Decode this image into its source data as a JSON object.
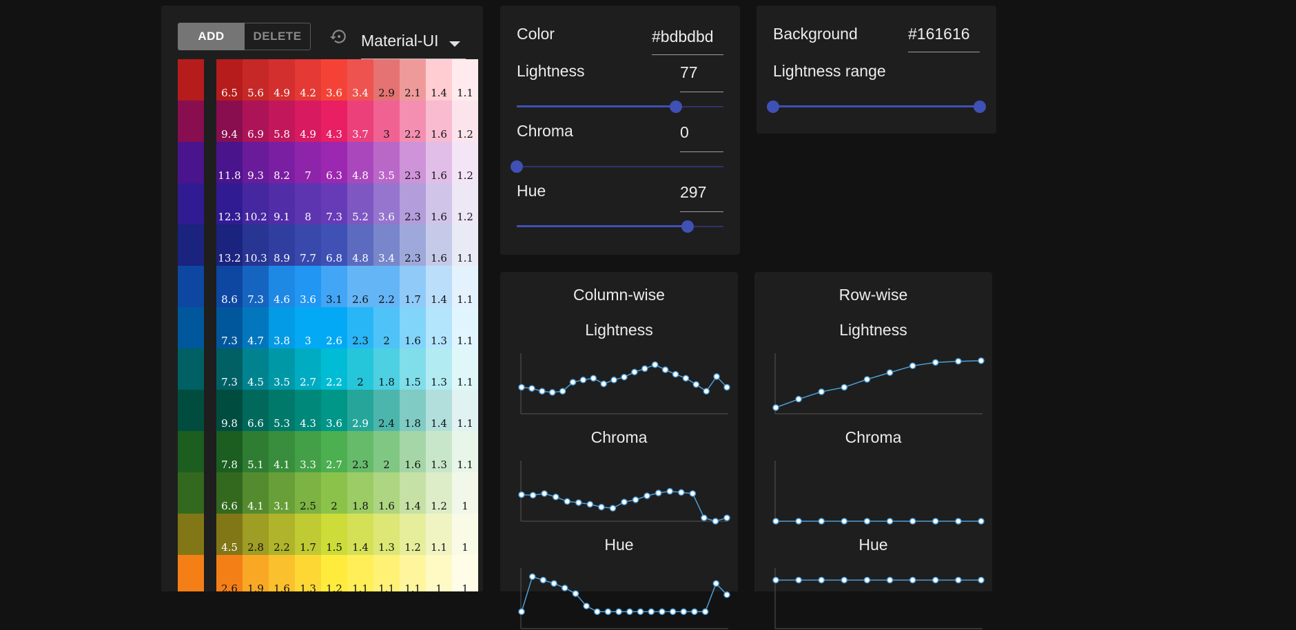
{
  "toolbar": {
    "add_label": "ADD",
    "delete_label": "DELETE",
    "reset_icon": "reset-icon",
    "preset": "Material-UI"
  },
  "palette": {
    "rows": [
      {
        "base": "#b71c1c",
        "swatches": [
          [
            "#b71c1c",
            "6.5"
          ],
          [
            "#c62828",
            "5.6"
          ],
          [
            "#d32f2f",
            "4.9"
          ],
          [
            "#e53935",
            "4.2"
          ],
          [
            "#f44336",
            "3.6"
          ],
          [
            "#ef5350",
            "3.4"
          ],
          [
            "#e57373",
            "2.9"
          ],
          [
            "#ef9a9a",
            "2.1"
          ],
          [
            "#ffcdd2",
            "1.4"
          ],
          [
            "#ffebee",
            "1.1"
          ]
        ]
      },
      {
        "base": "#880e4f",
        "swatches": [
          [
            "#880e4f",
            "9.4"
          ],
          [
            "#ad1457",
            "6.9"
          ],
          [
            "#c2185b",
            "5.8"
          ],
          [
            "#d81b60",
            "4.9"
          ],
          [
            "#e91e63",
            "4.3"
          ],
          [
            "#ec407a",
            "3.7"
          ],
          [
            "#f06292",
            "3"
          ],
          [
            "#f48fb1",
            "2.2"
          ],
          [
            "#f8bbd0",
            "1.6"
          ],
          [
            "#fce4ec",
            "1.2"
          ]
        ]
      },
      {
        "base": "#4a148c",
        "swatches": [
          [
            "#4a148c",
            "11.8"
          ],
          [
            "#6a1b9a",
            "9.3"
          ],
          [
            "#7b1fa2",
            "8.2"
          ],
          [
            "#8e24aa",
            "7"
          ],
          [
            "#9c27b0",
            "6.3"
          ],
          [
            "#ab47bc",
            "4.8"
          ],
          [
            "#ba68c8",
            "3.5"
          ],
          [
            "#ce93d8",
            "2.3"
          ],
          [
            "#e1bee7",
            "1.6"
          ],
          [
            "#f3e5f5",
            "1.2"
          ]
        ]
      },
      {
        "base": "#311b92",
        "swatches": [
          [
            "#311b92",
            "12.3"
          ],
          [
            "#4527a0",
            "10.2"
          ],
          [
            "#512da8",
            "9.1"
          ],
          [
            "#5e35b1",
            "8"
          ],
          [
            "#673ab7",
            "7.3"
          ],
          [
            "#7e57c2",
            "5.2"
          ],
          [
            "#9575cd",
            "3.6"
          ],
          [
            "#b39ddb",
            "2.3"
          ],
          [
            "#d1c4e9",
            "1.6"
          ],
          [
            "#ede7f6",
            "1.2"
          ]
        ]
      },
      {
        "base": "#1a237e",
        "swatches": [
          [
            "#1a237e",
            "13.2"
          ],
          [
            "#283593",
            "10.3"
          ],
          [
            "#303f9f",
            "8.9"
          ],
          [
            "#3949ab",
            "7.7"
          ],
          [
            "#3f51b5",
            "6.8"
          ],
          [
            "#5c6bc0",
            "4.8"
          ],
          [
            "#7986cb",
            "3.4"
          ],
          [
            "#9fa8da",
            "2.3"
          ],
          [
            "#c5cae9",
            "1.6"
          ],
          [
            "#e8eaf6",
            "1.1"
          ]
        ]
      },
      {
        "base": "#0d47a1",
        "swatches": [
          [
            "#0d47a1",
            "8.6"
          ],
          [
            "#1565c0",
            "7.3"
          ],
          [
            "#1e88e5",
            "4.6"
          ],
          [
            "#2196f3",
            "3.6"
          ],
          [
            "#42a5f5",
            "3.1"
          ],
          [
            "#64b5f6",
            "2.6"
          ],
          [
            "#64b5f6",
            "2.2"
          ],
          [
            "#90caf9",
            "1.7"
          ],
          [
            "#bbdefb",
            "1.4"
          ],
          [
            "#e3f2fd",
            "1.1"
          ]
        ]
      },
      {
        "base": "#01579b",
        "swatches": [
          [
            "#01579b",
            "7.3"
          ],
          [
            "#0277bd",
            "4.7"
          ],
          [
            "#039be5",
            "3.8"
          ],
          [
            "#03a9f4",
            "3"
          ],
          [
            "#03a9f4",
            "2.6"
          ],
          [
            "#29b6f6",
            "2.3"
          ],
          [
            "#4fc3f7",
            "2"
          ],
          [
            "#81d4fa",
            "1.6"
          ],
          [
            "#b3e5fc",
            "1.3"
          ],
          [
            "#e1f5fe",
            "1.1"
          ]
        ]
      },
      {
        "base": "#006064",
        "swatches": [
          [
            "#006064",
            "7.3"
          ],
          [
            "#00838f",
            "4.5"
          ],
          [
            "#0097a7",
            "3.5"
          ],
          [
            "#00acc1",
            "2.7"
          ],
          [
            "#00bcd4",
            "2.2"
          ],
          [
            "#26c6da",
            "2"
          ],
          [
            "#4dd0e1",
            "1.8"
          ],
          [
            "#80deea",
            "1.5"
          ],
          [
            "#b2ebf2",
            "1.3"
          ],
          [
            "#e0f7fa",
            "1.1"
          ]
        ]
      },
      {
        "base": "#004d40",
        "swatches": [
          [
            "#004d40",
            "9.8"
          ],
          [
            "#00695c",
            "6.6"
          ],
          [
            "#00796b",
            "5.3"
          ],
          [
            "#00897b",
            "4.3"
          ],
          [
            "#009688",
            "3.6"
          ],
          [
            "#26a69a",
            "2.9"
          ],
          [
            "#4db6ac",
            "2.4"
          ],
          [
            "#80cbc4",
            "1.8"
          ],
          [
            "#b2dfdb",
            "1.4"
          ],
          [
            "#e0f2f1",
            "1.1"
          ]
        ]
      },
      {
        "base": "#1b5e20",
        "swatches": [
          [
            "#1b5e20",
            "7.8"
          ],
          [
            "#2e7d32",
            "5.1"
          ],
          [
            "#388e3c",
            "4.1"
          ],
          [
            "#43a047",
            "3.3"
          ],
          [
            "#4caf50",
            "2.7"
          ],
          [
            "#66bb6a",
            "2.3"
          ],
          [
            "#81c784",
            "2"
          ],
          [
            "#a5d6a7",
            "1.6"
          ],
          [
            "#c8e6c9",
            "1.3"
          ],
          [
            "#e8f5e9",
            "1.1"
          ]
        ]
      },
      {
        "base": "#33691e",
        "swatches": [
          [
            "#33691e",
            "6.6"
          ],
          [
            "#558b2f",
            "4.1"
          ],
          [
            "#689f38",
            "3.1"
          ],
          [
            "#7cb342",
            "2.5"
          ],
          [
            "#8bc34a",
            "2"
          ],
          [
            "#9ccc65",
            "1.8"
          ],
          [
            "#aed581",
            "1.6"
          ],
          [
            "#c5e1a5",
            "1.4"
          ],
          [
            "#dcedc8",
            "1.2"
          ],
          [
            "#f1f8e9",
            "1"
          ]
        ]
      },
      {
        "base": "#827717",
        "swatches": [
          [
            "#827717",
            "4.5"
          ],
          [
            "#9e9d24",
            "2.8"
          ],
          [
            "#afb42b",
            "2.2"
          ],
          [
            "#c0ca33",
            "1.7"
          ],
          [
            "#cddc39",
            "1.5"
          ],
          [
            "#d4e157",
            "1.4"
          ],
          [
            "#dce775",
            "1.3"
          ],
          [
            "#e6ee9c",
            "1.2"
          ],
          [
            "#f0f4c3",
            "1.1"
          ],
          [
            "#f9fbe7",
            "1"
          ]
        ]
      },
      {
        "base": "#f57f17",
        "swatches": [
          [
            "#f57f17",
            "2.6"
          ],
          [
            "#f9a825",
            "1.9"
          ],
          [
            "#fbc02d",
            "1.6"
          ],
          [
            "#fdd835",
            "1.3"
          ],
          [
            "#ffeb3b",
            "1.2"
          ],
          [
            "#ffee58",
            "1.1"
          ],
          [
            "#fff176",
            "1.1"
          ],
          [
            "#fff59d",
            "1.1"
          ],
          [
            "#fff9c4",
            "1"
          ],
          [
            "#fffde7",
            "1"
          ]
        ]
      }
    ]
  },
  "color_panel": {
    "color_label": "Color",
    "color_value": "#bdbdbd",
    "lightness_label": "Lightness",
    "lightness_value": "77",
    "lightness_fraction": 0.77,
    "chroma_label": "Chroma",
    "chroma_value": "0",
    "chroma_fraction": 0.0,
    "hue_label": "Hue",
    "hue_value": "297",
    "hue_fraction": 0.825
  },
  "bg_panel": {
    "background_label": "Background",
    "background_value": "#161616",
    "range_label": "Lightness range",
    "range_low": 0.0,
    "range_high": 1.0
  },
  "accent": "#3f51b5",
  "line_color": "#4e9fd8",
  "chart_data": [
    {
      "type": "line",
      "title": "Column-wise",
      "subtitle": "Lightness",
      "y": [
        0.47,
        0.45,
        0.4,
        0.38,
        0.4,
        0.56,
        0.6,
        0.63,
        0.53,
        0.6,
        0.65,
        0.74,
        0.8,
        0.87,
        0.78,
        0.7,
        0.63,
        0.52,
        0.4,
        0.66,
        0.47
      ],
      "ylim": [
        0,
        1
      ]
    },
    {
      "type": "line",
      "title": "",
      "subtitle": "Chroma",
      "y": [
        0.47,
        0.46,
        0.49,
        0.43,
        0.35,
        0.33,
        0.3,
        0.25,
        0.23,
        0.34,
        0.38,
        0.45,
        0.5,
        0.53,
        0.51,
        0.49,
        0.06,
        0.0,
        0.06
      ],
      "ylim": [
        0,
        1
      ]
    },
    {
      "type": "line",
      "title": "",
      "subtitle": "Hue",
      "y": [
        0.3,
        0.92,
        0.86,
        0.8,
        0.72,
        0.62,
        0.4,
        0.3,
        0.3,
        0.3,
        0.3,
        0.3,
        0.3,
        0.3,
        0.3,
        0.3,
        0.3,
        0.3,
        0.8,
        0.6
      ],
      "ylim": [
        0,
        1
      ]
    },
    {
      "type": "line",
      "title": "Row-wise",
      "subtitle": "Lightness",
      "y": [
        0.11,
        0.26,
        0.39,
        0.47,
        0.61,
        0.73,
        0.85,
        0.91,
        0.93,
        0.94
      ],
      "ylim": [
        0,
        1
      ]
    },
    {
      "type": "line",
      "title": "",
      "subtitle": "Chroma",
      "y": [
        0,
        0,
        0,
        0,
        0,
        0,
        0,
        0,
        0,
        0
      ],
      "ylim": [
        0,
        1
      ]
    },
    {
      "type": "line",
      "title": "",
      "subtitle": "Hue",
      "y": [
        0.86,
        0.86,
        0.86,
        0.86,
        0.86,
        0.86,
        0.86,
        0.86,
        0.86,
        0.86
      ],
      "ylim": [
        0,
        1
      ]
    }
  ]
}
